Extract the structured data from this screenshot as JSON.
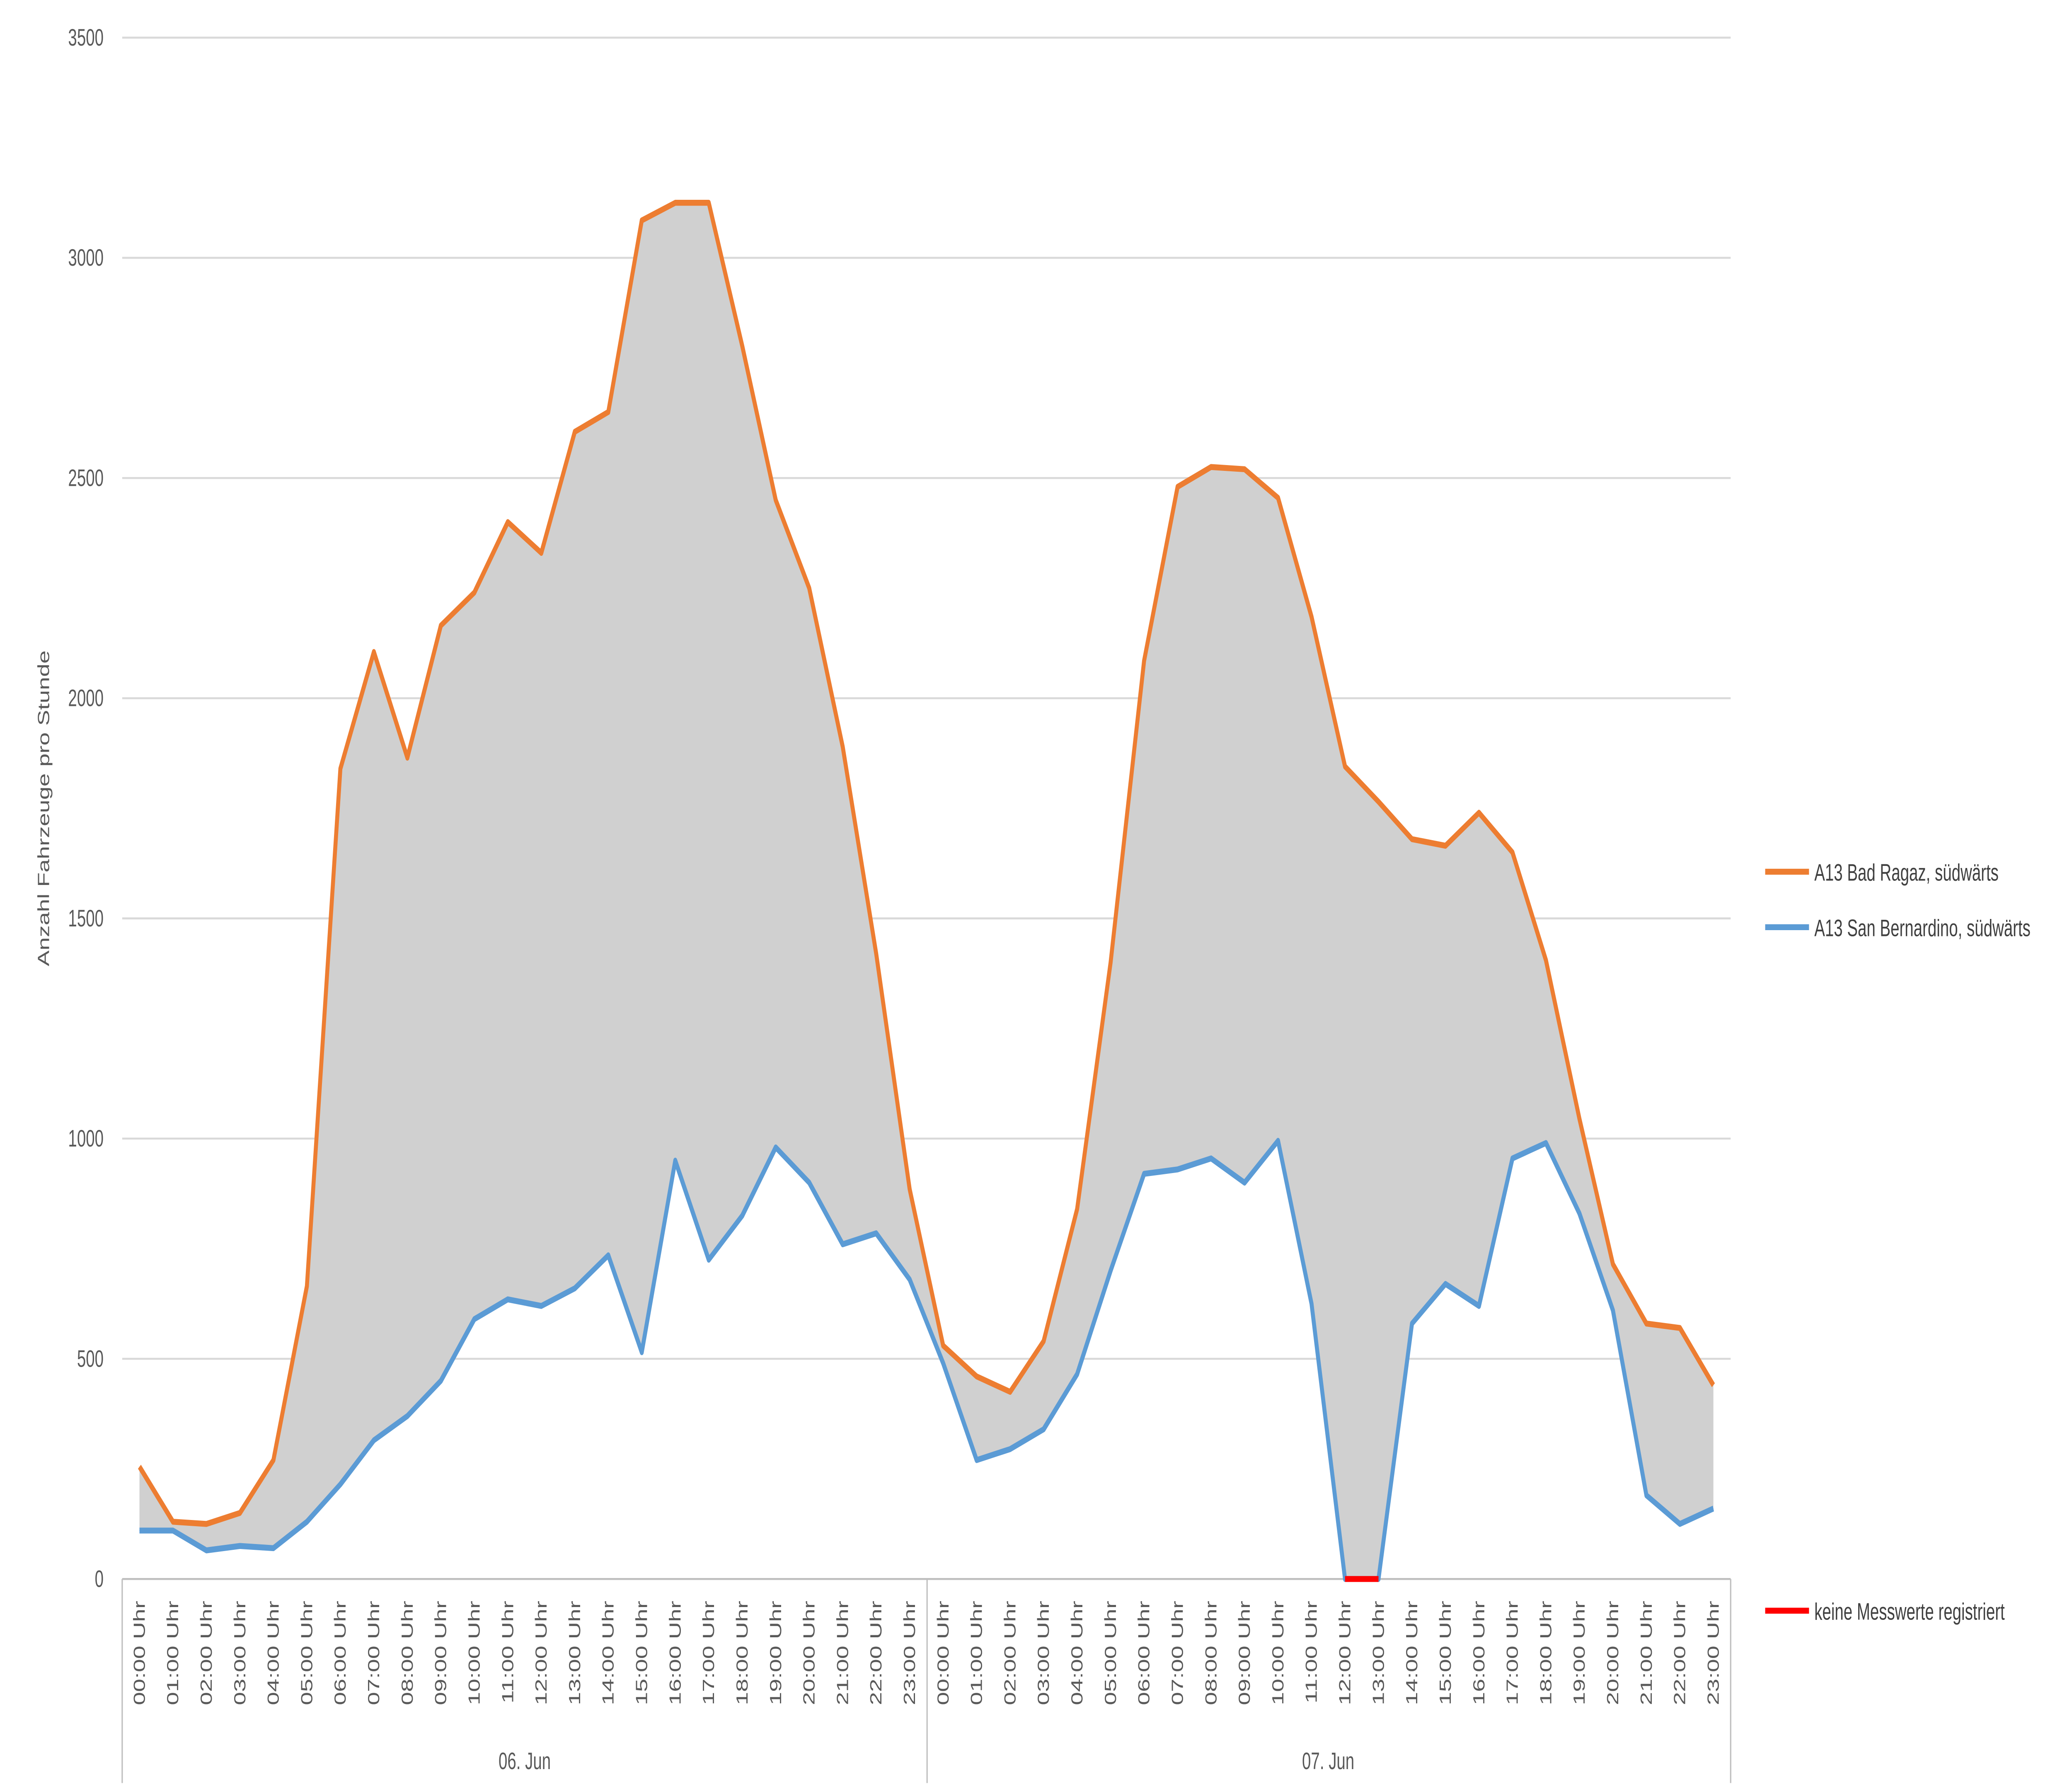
{
  "chart_data": {
    "type": "area",
    "title": "",
    "xlabel": "",
    "ylabel": "Anzahl Fahrzeuge pro Stunde",
    "ylim": [
      0,
      3500
    ],
    "yticks": [
      0,
      500,
      1000,
      1500,
      2000,
      2500,
      3000,
      3500
    ],
    "grid": true,
    "legend_position": "right",
    "days": [
      "06. Jun",
      "07. Jun"
    ],
    "hours": [
      "00:00 Uhr",
      "01:00 Uhr",
      "02:00 Uhr",
      "03:00 Uhr",
      "04:00 Uhr",
      "05:00 Uhr",
      "06:00 Uhr",
      "07:00 Uhr",
      "08:00 Uhr",
      "09:00 Uhr",
      "10:00 Uhr",
      "11:00 Uhr",
      "12:00 Uhr",
      "13:00 Uhr",
      "14:00 Uhr",
      "15:00 Uhr",
      "16:00 Uhr",
      "17:00 Uhr",
      "18:00 Uhr",
      "19:00 Uhr",
      "20:00 Uhr",
      "21:00 Uhr",
      "22:00 Uhr",
      "23:00 Uhr"
    ],
    "series": [
      {
        "name": "A13 Bad Ragaz, südwärts",
        "color": "#ED7D31",
        "values": [
          255,
          130,
          125,
          150,
          270,
          665,
          1840,
          2105,
          1865,
          2165,
          2240,
          2400,
          2330,
          2605,
          2650,
          3085,
          3125,
          3125,
          2800,
          2450,
          2250,
          1890,
          1420,
          885,
          530,
          460,
          425,
          540,
          840,
          1400,
          2085,
          2480,
          2525,
          2520,
          2455,
          2185,
          1845,
          1765,
          1680,
          1665,
          1740,
          1650,
          1405,
          1045,
          715,
          580,
          570,
          440
        ]
      },
      {
        "name": "A13 San Bernardino, südwärts",
        "color": "#5B9BD5",
        "values": [
          110,
          110,
          65,
          75,
          70,
          130,
          215,
          315,
          370,
          450,
          590,
          635,
          620,
          660,
          735,
          515,
          950,
          725,
          825,
          980,
          900,
          760,
          785,
          680,
          490,
          270,
          295,
          340,
          465,
          700,
          920,
          930,
          955,
          900,
          995,
          625,
          0,
          0,
          580,
          670,
          620,
          955,
          990,
          830,
          610,
          190,
          125,
          160
        ]
      }
    ],
    "missing": {
      "name": "keine Messwerte registriert",
      "color": "#FF0000",
      "series": 1,
      "indices": [
        36,
        37
      ]
    },
    "fill_color": "#D0D0D0"
  }
}
